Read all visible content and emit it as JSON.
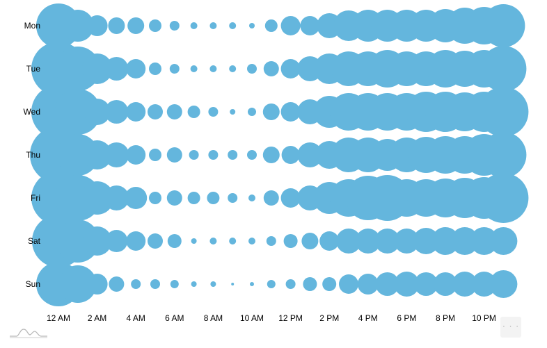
{
  "chart_data": {
    "type": "bubble-punchcard",
    "title": "",
    "xlabel": "",
    "ylabel": "",
    "days": [
      "Mon",
      "Tue",
      "Wed",
      "Thu",
      "Fri",
      "Sat",
      "Sun"
    ],
    "hours": [
      "12 AM",
      "1 AM",
      "2 AM",
      "3 AM",
      "4 AM",
      "5 AM",
      "6 AM",
      "7 AM",
      "8 AM",
      "9 AM",
      "10 AM",
      "11 AM",
      "12 PM",
      "1 PM",
      "2 PM",
      "3 PM",
      "4 PM",
      "5 PM",
      "6 PM",
      "7 PM",
      "8 PM",
      "9 PM",
      "10 PM",
      "11 PM"
    ],
    "x_tick_labels": [
      "12 AM",
      "2 AM",
      "4 AM",
      "6 AM",
      "8 AM",
      "10 AM",
      "12 PM",
      "2 PM",
      "4 PM",
      "6 PM",
      "8 PM",
      "10 PM"
    ],
    "bubble_color": "#64b6dd",
    "values": {
      "Mon": [
        32,
        23,
        15,
        12,
        12,
        9,
        7,
        5,
        5,
        5,
        4,
        9,
        14,
        14,
        18,
        22,
        23,
        23,
        23,
        23,
        24,
        26,
        27,
        31
      ],
      "Tue": [
        39,
        32,
        22,
        17,
        14,
        9,
        7,
        5,
        5,
        5,
        7,
        11,
        14,
        18,
        22,
        25,
        25,
        27,
        25,
        25,
        27,
        26,
        27,
        33
      ],
      "Wed": [
        39,
        33,
        19,
        17,
        14,
        11,
        11,
        9,
        7,
        4,
        6,
        12,
        14,
        18,
        23,
        27,
        27,
        27,
        27,
        29,
        29,
        28,
        29,
        36
      ],
      "Thu": [
        41,
        30,
        21,
        18,
        14,
        9,
        11,
        7,
        7,
        7,
        7,
        12,
        13,
        18,
        20,
        25,
        25,
        23,
        25,
        26,
        27,
        27,
        30,
        33
      ],
      "Fri": [
        39,
        33,
        24,
        18,
        16,
        9,
        11,
        9,
        9,
        7,
        5,
        11,
        14,
        18,
        23,
        27,
        32,
        33,
        27,
        27,
        28,
        29,
        30,
        36
      ],
      "Sat": [
        38,
        31,
        21,
        16,
        14,
        11,
        10,
        4,
        5,
        5,
        5,
        7,
        10,
        12,
        14,
        18,
        18,
        18,
        18,
        19,
        20,
        20,
        20,
        20
      ],
      "Sun": [
        32,
        27,
        15,
        11,
        7,
        7,
        6,
        4,
        4,
        2,
        3,
        6,
        7,
        10,
        10,
        14,
        15,
        17,
        18,
        17,
        17,
        18,
        18,
        20
      ]
    }
  }
}
